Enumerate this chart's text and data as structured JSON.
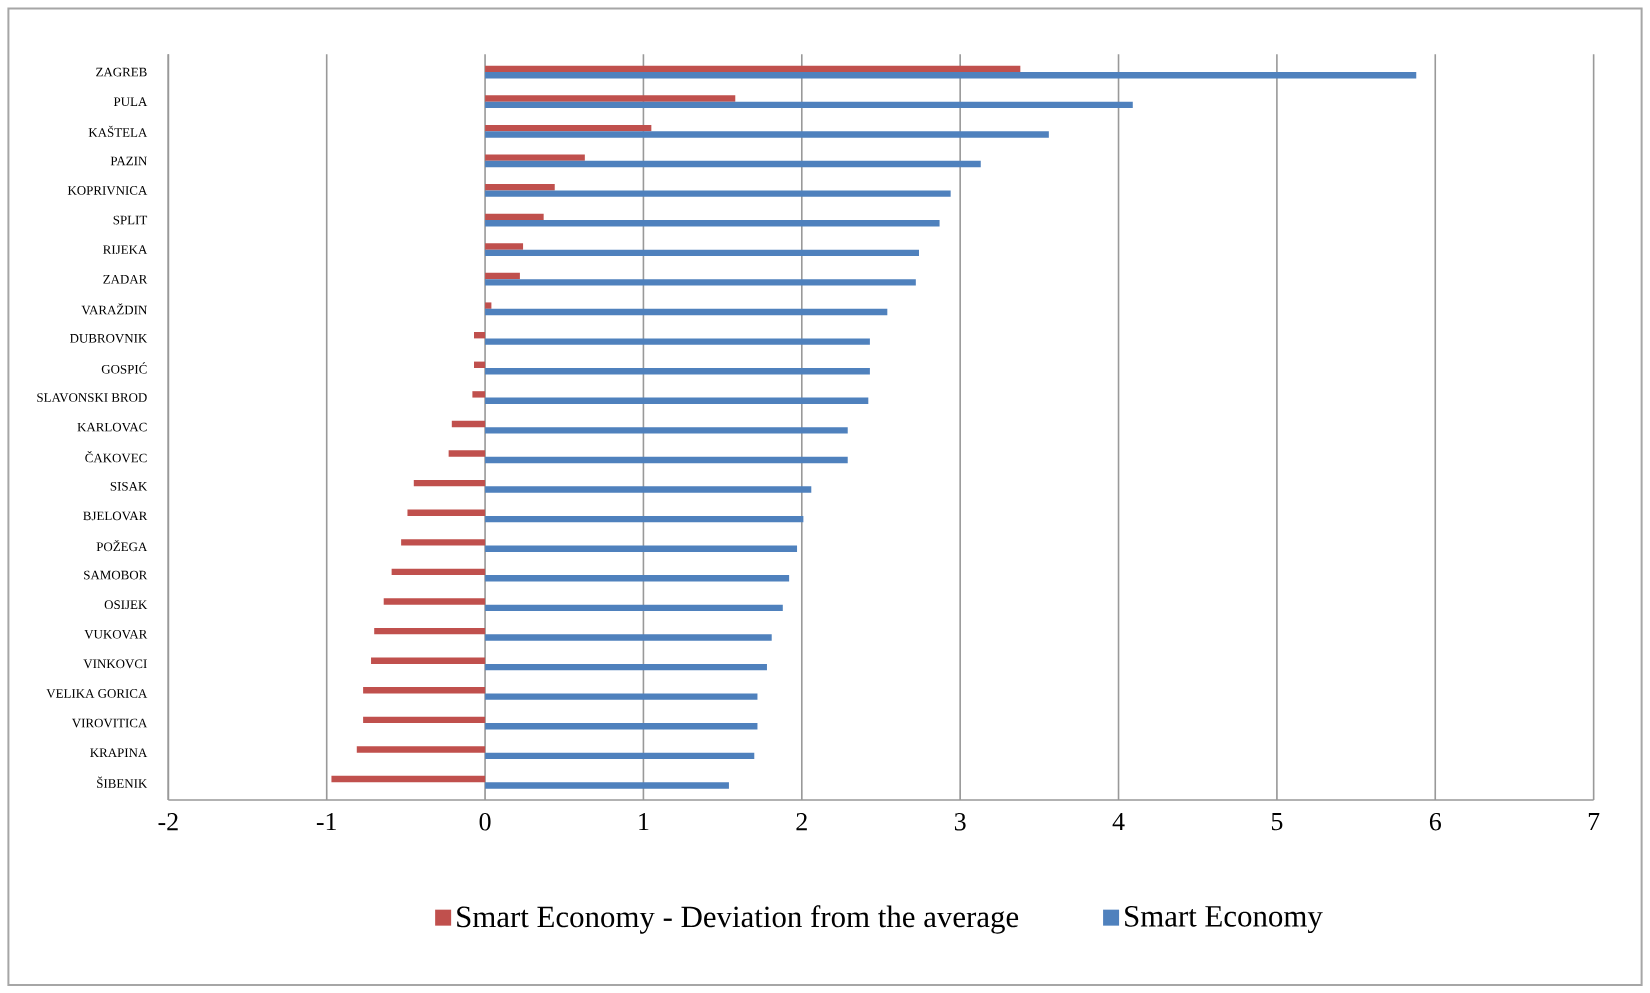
{
  "chart_data": {
    "type": "bar",
    "orientation": "horizontal",
    "categories": [
      "ZAGREB",
      "PULA",
      "KAŠTELA",
      "PAZIN",
      "KOPRIVNICA",
      "SPLIT",
      "RIJEKA",
      "ZADAR",
      "VARAŽDIN",
      "DUBROVNIK",
      "GOSPIĆ",
      "SLAVONSKI BROD",
      "KARLOVAC",
      "ČAKOVEC",
      "SISAK",
      "BJELOVAR",
      "POŽEGA",
      "SAMOBOR",
      "OSIJEK",
      "VUKOVAR",
      "VINKOVCI",
      "VELIKA GORICA",
      "VIROVITICA",
      "KRAPINA",
      "ŠIBENIK"
    ],
    "series": [
      {
        "name": "Smart Economy - Deviation from the average",
        "color": "#c0504d",
        "values": [
          3.38,
          1.58,
          1.05,
          0.63,
          0.44,
          0.37,
          0.24,
          0.22,
          0.04,
          -0.07,
          -0.07,
          -0.08,
          -0.21,
          -0.23,
          -0.45,
          -0.49,
          -0.53,
          -0.59,
          -0.64,
          -0.7,
          -0.72,
          -0.77,
          -0.77,
          -0.81,
          -0.97
        ]
      },
      {
        "name": "Smart Economy",
        "color": "#4f81bd",
        "values": [
          5.88,
          4.09,
          3.56,
          3.13,
          2.94,
          2.87,
          2.74,
          2.72,
          2.54,
          2.43,
          2.43,
          2.42,
          2.29,
          2.29,
          2.06,
          2.01,
          1.97,
          1.92,
          1.88,
          1.81,
          1.78,
          1.72,
          1.72,
          1.7,
          1.54
        ]
      }
    ],
    "xlim": [
      -2,
      7
    ],
    "xticks": [
      -2,
      -1,
      0,
      1,
      2,
      3,
      4,
      5,
      6,
      7
    ],
    "grid": "x",
    "legend": "bottom"
  }
}
